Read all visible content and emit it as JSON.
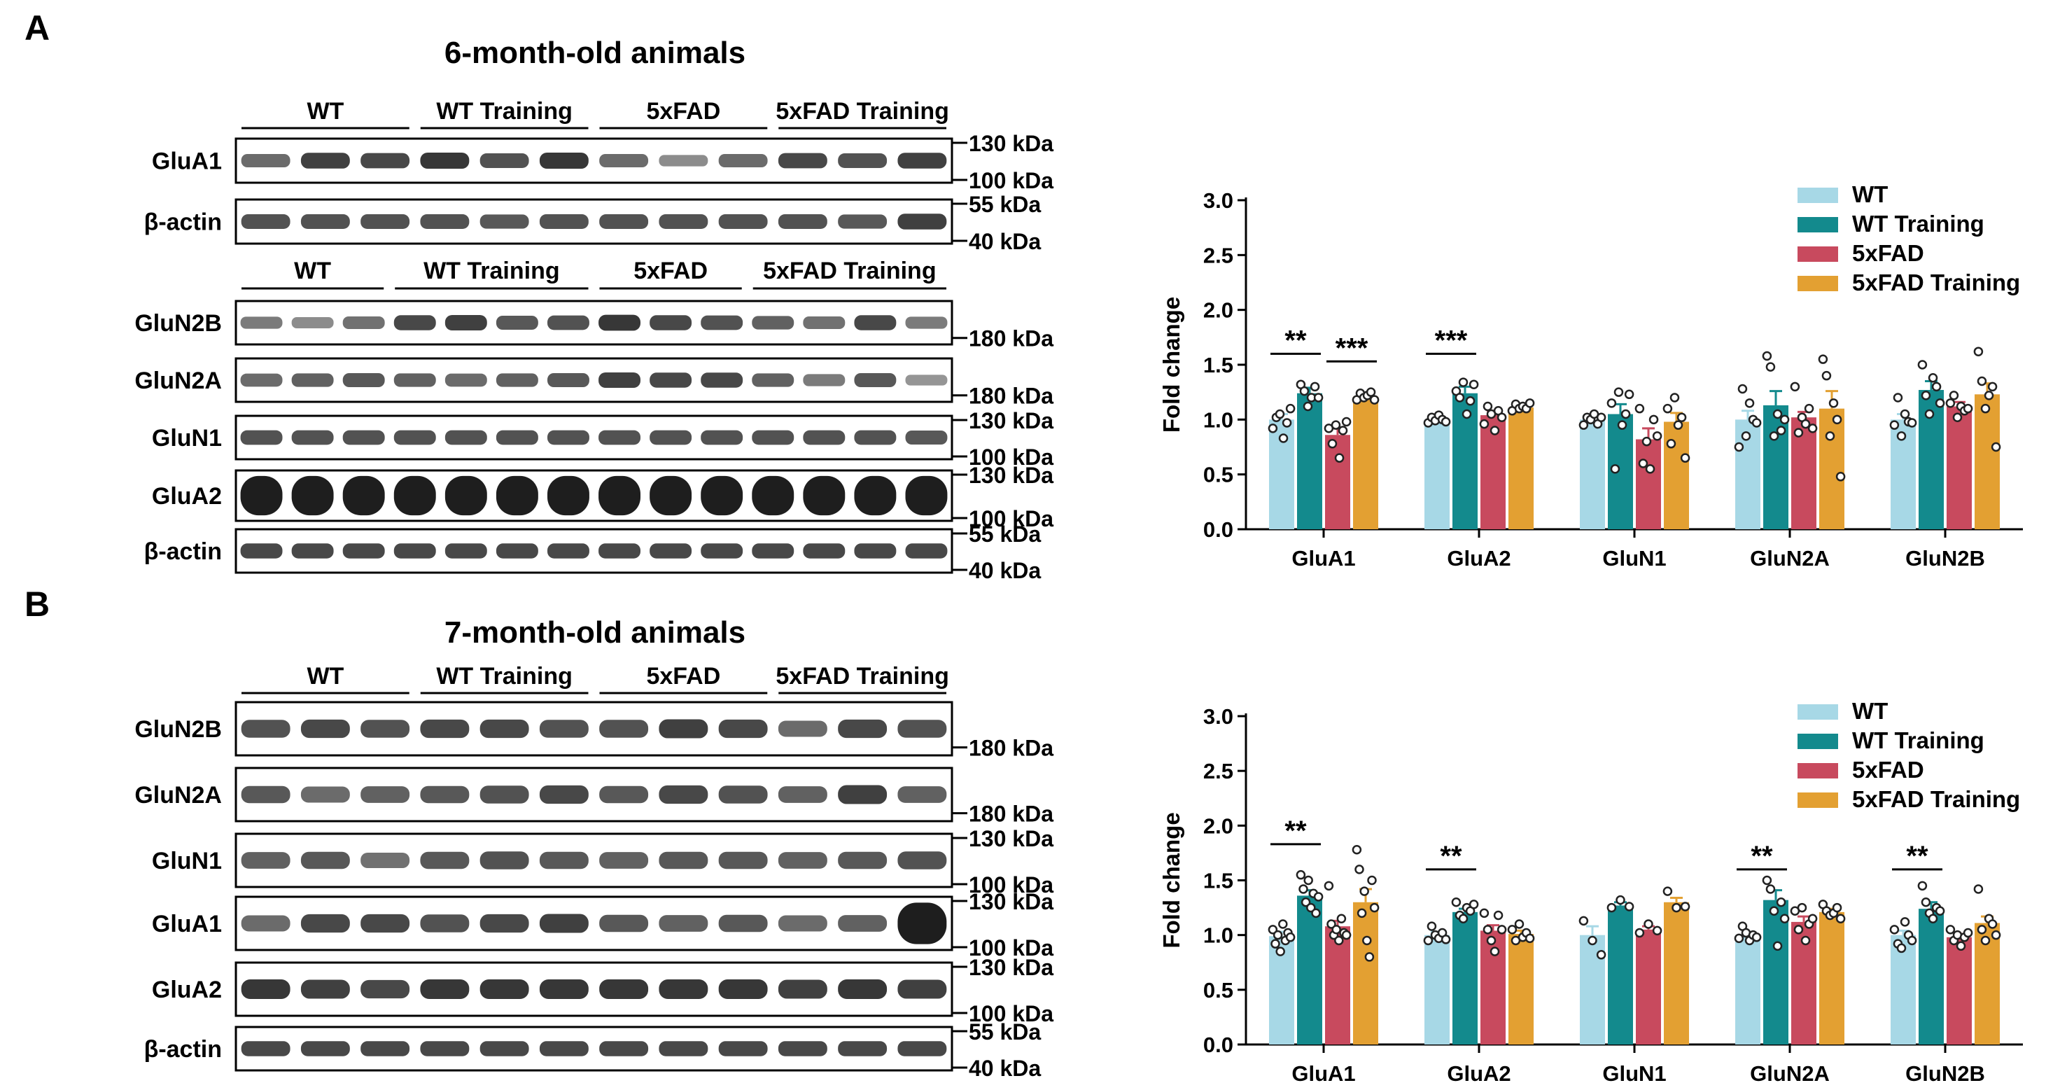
{
  "colors": {
    "wt": "#a7d8e6",
    "wt_training": "#138a8d",
    "fad": "#c84a5e",
    "fad_training": "#e3a032",
    "blot_bg": "#ffffff",
    "band": "#1e1e1e",
    "frame": "#000000"
  },
  "panels": [
    {
      "letter": "A",
      "title": "6-month-old animals",
      "blots": [
        {
          "group_labels": [
            "WT",
            "WT Training",
            "5xFAD",
            "5xFAD Training"
          ],
          "group_lanes": [
            3,
            3,
            3,
            3
          ],
          "rows": [
            {
              "label": "GluA1",
              "markers": [
                "130 kDa",
                "100 kDa"
              ],
              "intensity": [
                0.55,
                0.8,
                0.75,
                0.85,
                0.7,
                0.85,
                0.55,
                0.35,
                0.55,
                0.75,
                0.7,
                0.8
              ]
            },
            {
              "label": "β-actin",
              "markers": [
                "55 kDa",
                "40 kDa"
              ],
              "intensity": [
                0.7,
                0.7,
                0.7,
                0.7,
                0.65,
                0.7,
                0.7,
                0.7,
                0.7,
                0.7,
                0.65,
                0.8
              ]
            }
          ]
        },
        {
          "group_labels": [
            "WT",
            "WT Training",
            "5xFAD",
            "5xFAD Training"
          ],
          "group_lanes": [
            3,
            4,
            3,
            4
          ],
          "rows": [
            {
              "label": "GluN2B",
              "markers": [
                "180 kDa"
              ],
              "intensity": [
                0.45,
                0.35,
                0.5,
                0.75,
                0.8,
                0.65,
                0.7,
                0.85,
                0.75,
                0.7,
                0.6,
                0.5,
                0.75,
                0.45
              ]
            },
            {
              "label": "GluN2A",
              "markers": [
                "180 kDa"
              ],
              "intensity": [
                0.55,
                0.6,
                0.65,
                0.6,
                0.55,
                0.6,
                0.65,
                0.8,
                0.75,
                0.75,
                0.6,
                0.45,
                0.65,
                0.3
              ]
            },
            {
              "label": "GluN1",
              "markers": [
                "130 kDa",
                "100 kDa"
              ],
              "intensity": [
                0.7,
                0.7,
                0.7,
                0.7,
                0.7,
                0.7,
                0.7,
                0.7,
                0.7,
                0.7,
                0.7,
                0.7,
                0.7,
                0.65
              ]
            },
            {
              "label": "GluA2",
              "markers": [
                "130 kDa",
                "100 kDa"
              ],
              "intensity": [
                1,
                1,
                1,
                1,
                1,
                1,
                1,
                1,
                1,
                1,
                1,
                1,
                1,
                1
              ]
            },
            {
              "label": "β-actin",
              "markers": [
                "55 kDa",
                "40 kDa"
              ],
              "intensity": [
                0.75,
                0.75,
                0.75,
                0.75,
                0.75,
                0.75,
                0.75,
                0.75,
                0.75,
                0.75,
                0.75,
                0.75,
                0.75,
                0.75
              ]
            }
          ]
        }
      ]
    },
    {
      "letter": "B",
      "title": "7-month-old animals",
      "blots": [
        {
          "group_labels": [
            "WT",
            "WT Training",
            "5xFAD",
            "5xFAD Training"
          ],
          "group_lanes": [
            3,
            3,
            3,
            3
          ],
          "rows": [
            {
              "label": "GluN2B",
              "markers": [
                "180 kDa"
              ],
              "intensity": [
                0.7,
                0.75,
                0.7,
                0.75,
                0.75,
                0.7,
                0.7,
                0.8,
                0.75,
                0.55,
                0.75,
                0.7
              ]
            },
            {
              "label": "GluN2A",
              "markers": [
                "180 kDa"
              ],
              "intensity": [
                0.65,
                0.55,
                0.6,
                0.65,
                0.7,
                0.75,
                0.65,
                0.75,
                0.7,
                0.6,
                0.8,
                0.6
              ]
            },
            {
              "label": "GluN1",
              "markers": [
                "130 kDa",
                "100 kDa"
              ],
              "intensity": [
                0.6,
                0.65,
                0.5,
                0.65,
                0.7,
                0.65,
                0.6,
                0.65,
                0.65,
                0.6,
                0.65,
                0.7
              ]
            },
            {
              "label": "GluA1",
              "markers": [
                "130 kDa",
                "100 kDa"
              ],
              "intensity": [
                0.55,
                0.75,
                0.75,
                0.7,
                0.75,
                0.8,
                0.65,
                0.6,
                0.65,
                0.55,
                0.6,
                1
              ]
            },
            {
              "label": "GluA2",
              "markers": [
                "130 kDa",
                "100 kDa"
              ],
              "intensity": [
                0.85,
                0.8,
                0.75,
                0.85,
                0.85,
                0.85,
                0.85,
                0.85,
                0.85,
                0.8,
                0.85,
                0.8
              ]
            },
            {
              "label": "β-actin",
              "markers": [
                "55 kDa",
                "40 kDa"
              ],
              "intensity": [
                0.75,
                0.75,
                0.75,
                0.75,
                0.75,
                0.75,
                0.75,
                0.75,
                0.75,
                0.75,
                0.75,
                0.75
              ]
            }
          ]
        }
      ]
    }
  ],
  "chart_data": [
    {
      "type": "bar",
      "panel": "A",
      "title": "",
      "xlabel": "",
      "ylabel": "Fold change",
      "ylim": [
        0,
        3.0
      ],
      "yticks": [
        "0.0",
        "0.5",
        "1.0",
        "1.5",
        "2.0",
        "2.5",
        "3.0"
      ],
      "legend_position": "top-right",
      "categories": [
        "GluA1",
        "GluA2",
        "GluN1",
        "GluN2A",
        "GluN2B"
      ],
      "series": [
        {
          "name": "WT",
          "values": [
            1.0,
            1.0,
            1.0,
            1.0,
            1.0
          ],
          "errors": [
            0.05,
            0.02,
            0.03,
            0.08,
            0.05
          ],
          "points": [
            [
              0.92,
              1.02,
              1.05,
              0.83,
              0.97,
              1.1
            ],
            [
              0.97,
              1.02,
              0.99,
              1.04,
              1.0,
              0.98
            ],
            [
              0.95,
              1.02,
              1.0,
              1.05,
              0.96,
              1.02
            ],
            [
              0.75,
              1.28,
              0.85,
              1.15,
              1.0,
              0.97
            ],
            [
              0.95,
              1.2,
              0.85,
              1.05,
              0.98,
              0.97
            ]
          ]
        },
        {
          "name": "WT Training",
          "values": [
            1.24,
            1.24,
            1.05,
            1.13,
            1.27
          ],
          "errors": [
            0.05,
            0.06,
            0.09,
            0.13,
            0.08
          ],
          "points": [
            [
              1.32,
              1.26,
              1.12,
              1.2,
              1.3,
              1.2
            ],
            [
              1.26,
              1.2,
              1.34,
              1.05,
              1.17,
              1.32
            ],
            [
              1.15,
              0.55,
              1.25,
              0.95,
              1.05,
              1.23
            ],
            [
              1.58,
              1.48,
              0.85,
              1.05,
              0.9,
              1.0
            ],
            [
              1.5,
              1.22,
              1.05,
              1.38,
              1.3,
              1.15
            ]
          ]
        },
        {
          "name": "5xFAD",
          "values": [
            0.86,
            1.04,
            0.82,
            1.02,
            1.12
          ],
          "errors": [
            0.06,
            0.04,
            0.1,
            0.05,
            0.04
          ],
          "points": [
            [
              0.92,
              0.78,
              0.95,
              0.65,
              0.9,
              0.98
            ],
            [
              0.96,
              1.12,
              1.05,
              0.9,
              1.08,
              1.02
            ],
            [
              1.1,
              0.6,
              0.8,
              0.55,
              1.0,
              0.85
            ],
            [
              1.3,
              0.88,
              1.02,
              0.96,
              1.1,
              0.92
            ],
            [
              1.15,
              1.22,
              1.02,
              1.12,
              1.08,
              1.1
            ]
          ]
        },
        {
          "name": "5xFAD Training",
          "values": [
            1.21,
            1.11,
            0.98,
            1.1,
            1.23
          ],
          "errors": [
            0.02,
            0.02,
            0.08,
            0.16,
            0.1
          ],
          "points": [
            [
              1.18,
              1.24,
              1.2,
              1.22,
              1.25,
              1.18
            ],
            [
              1.08,
              1.14,
              1.1,
              1.12,
              1.1,
              1.15
            ],
            [
              1.1,
              0.78,
              1.2,
              0.95,
              1.02,
              0.65
            ],
            [
              1.55,
              1.4,
              0.85,
              1.15,
              1.0,
              0.48
            ],
            [
              1.62,
              1.35,
              1.1,
              1.22,
              1.3,
              0.75
            ]
          ]
        }
      ],
      "significance": [
        {
          "category": "GluA1",
          "from": "WT",
          "to": "WT Training",
          "label": "**",
          "y": 1.6
        },
        {
          "category": "GluA1",
          "from": "5xFAD",
          "to": "5xFAD Training",
          "label": "***",
          "y": 1.53
        },
        {
          "category": "GluA2",
          "from": "WT",
          "to": "WT Training",
          "label": "***",
          "y": 1.6
        }
      ]
    },
    {
      "type": "bar",
      "panel": "B",
      "title": "",
      "xlabel": "",
      "ylabel": "Fold change",
      "ylim": [
        0,
        3.0
      ],
      "yticks": [
        "0.0",
        "0.5",
        "1.0",
        "1.5",
        "2.0",
        "2.5",
        "3.0"
      ],
      "legend_position": "top-right",
      "categories": [
        "GluA1",
        "GluA2",
        "GluN1",
        "GluN2A",
        "GluN2B"
      ],
      "series": [
        {
          "name": "WT",
          "values": [
            0.99,
            1.0,
            1.0,
            1.0,
            1.0
          ],
          "errors": [
            0.04,
            0.03,
            0.08,
            0.02,
            0.04
          ],
          "points": [
            [
              1.05,
              0.92,
              1.0,
              0.85,
              1.1,
              0.95,
              1.02,
              0.98
            ],
            [
              0.95,
              1.08,
              1.0,
              0.97,
              1.02,
              0.96
            ],
            [
              1.13,
              0.95,
              0.82
            ],
            [
              0.97,
              1.08,
              1.02,
              0.95,
              1.0,
              0.98
            ],
            [
              1.05,
              0.92,
              0.88,
              1.12,
              1.0,
              0.95
            ]
          ]
        },
        {
          "name": "WT Training",
          "values": [
            1.36,
            1.21,
            1.27,
            1.32,
            1.24
          ],
          "errors": [
            0.05,
            0.03,
            0.03,
            0.09,
            0.06
          ],
          "points": [
            [
              1.55,
              1.42,
              1.3,
              1.5,
              1.25,
              1.38,
              1.2,
              1.35
            ],
            [
              1.3,
              1.18,
              1.15,
              1.25,
              1.22,
              1.28
            ],
            [
              1.25,
              1.32,
              1.26
            ],
            [
              1.5,
              1.42,
              1.22,
              0.9,
              1.3,
              1.15
            ],
            [
              1.45,
              1.3,
              1.2,
              1.15,
              1.25,
              1.22
            ]
          ]
        },
        {
          "name": "5xFAD",
          "values": [
            1.08,
            1.04,
            1.05,
            1.12,
            0.98
          ],
          "errors": [
            0.05,
            0.05,
            0.03,
            0.05,
            0.03
          ],
          "points": [
            [
              1.45,
              1.1,
              1.0,
              1.05,
              0.95,
              1.15,
              1.02,
              1.0
            ],
            [
              1.2,
              1.05,
              0.95,
              0.85,
              1.18,
              1.05
            ],
            [
              1.02,
              1.1,
              1.04
            ],
            [
              1.22,
              1.05,
              1.25,
              0.95,
              1.1,
              1.15
            ],
            [
              1.05,
              0.95,
              1.0,
              0.9,
              0.98,
              1.02
            ]
          ]
        },
        {
          "name": "5xFAD Training",
          "values": [
            1.3,
            1.01,
            1.3,
            1.21,
            1.11
          ],
          "errors": [
            0.12,
            0.03,
            0.04,
            0.03,
            0.06
          ],
          "points": [
            [
              1.78,
              1.6,
              1.2,
              1.4,
              0.95,
              0.8,
              1.5,
              1.25
            ],
            [
              1.05,
              0.95,
              1.1,
              0.98,
              1.02,
              0.97
            ],
            [
              1.4,
              1.25,
              1.26
            ],
            [
              1.28,
              1.22,
              1.18,
              1.2,
              1.25,
              1.15
            ],
            [
              1.42,
              1.05,
              0.95,
              1.15,
              1.1,
              1.0
            ]
          ]
        }
      ],
      "significance": [
        {
          "category": "GluA1",
          "from": "WT",
          "to": "WT Training",
          "label": "**",
          "y": 1.83
        },
        {
          "category": "GluA2",
          "from": "WT",
          "to": "WT Training",
          "label": "**",
          "y": 1.6
        },
        {
          "category": "GluN2A",
          "from": "WT",
          "to": "WT Training",
          "label": "**",
          "y": 1.6
        },
        {
          "category": "GluN2B",
          "from": "WT",
          "to": "WT Training",
          "label": "**",
          "y": 1.6
        }
      ]
    }
  ]
}
